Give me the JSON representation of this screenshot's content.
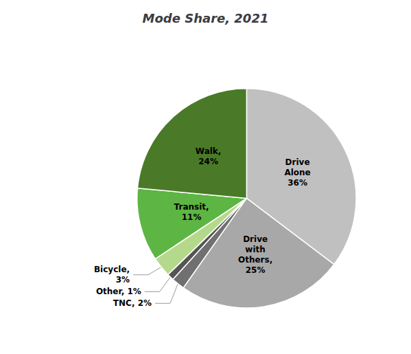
{
  "chart_data": {
    "type": "pie",
    "title": "Mode Share, 2021",
    "categories": [
      "Drive\nAlone\n36%",
      "Drive\nwith\nOthers,\n25%",
      "TNC, 2%",
      "Other, 1%",
      "Bicycle,\n3%",
      "Transit,\n11%",
      "Walk,\n24%"
    ],
    "values": [
      36,
      25,
      2,
      1,
      3,
      11,
      24
    ],
    "colors": [
      "#c0c0c0",
      "#a8a8a8",
      "#707070",
      "#545454",
      "#b5d98a",
      "#5db544",
      "#4a7a28"
    ],
    "legend": false
  }
}
